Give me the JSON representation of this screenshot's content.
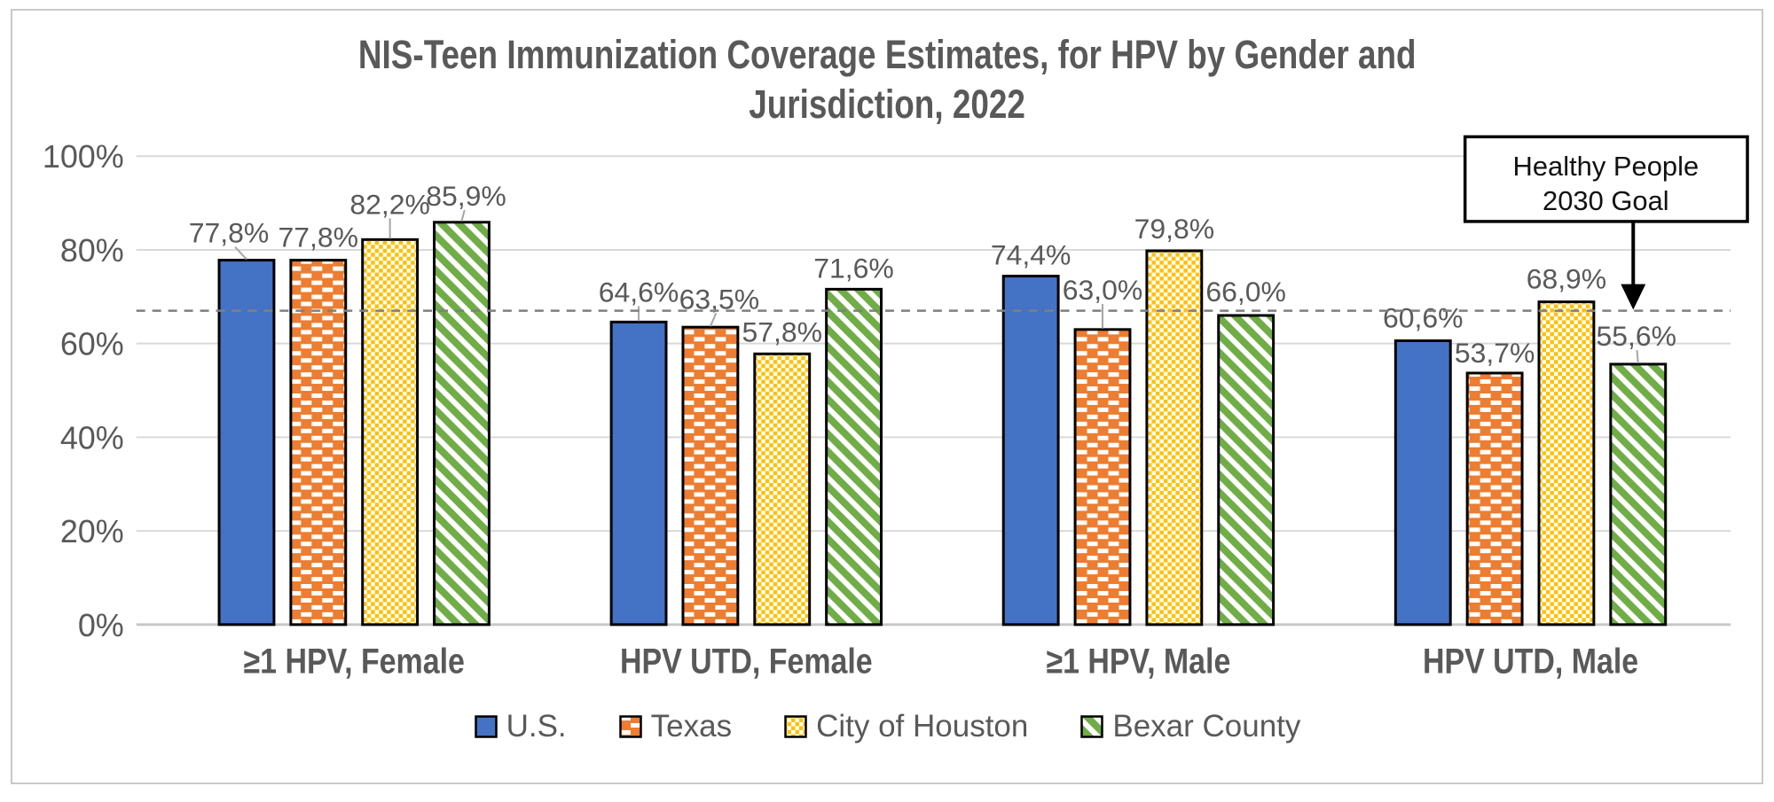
{
  "header": {
    "title_lines": [
      "NIS-Teen Immunization Coverage Estimates, for HPV by Gender and",
      "Jurisdiction, 2022"
    ]
  },
  "chart_data": {
    "type": "bar",
    "title": "NIS-Teen Immunization Coverage Estimates, for HPV by Gender and Jurisdiction, 2022",
    "categories": [
      "≥1 HPV, Female",
      "HPV UTD, Female",
      "≥1 HPV, Male",
      "HPV UTD, Male"
    ],
    "series": [
      {
        "name": "U.S.",
        "pattern": "solid",
        "color": "#4472C4",
        "values": [
          77.8,
          64.6,
          74.4,
          60.6
        ],
        "labels": [
          "77,8%",
          "64,6%",
          "74,4%",
          "60,6%"
        ]
      },
      {
        "name": "Texas",
        "pattern": "white-dashes",
        "color": "#ED7D31",
        "values": [
          77.8,
          63.5,
          63.0,
          53.7
        ],
        "labels": [
          "77,8%",
          "63,5%",
          "63,0%",
          "53,7%"
        ]
      },
      {
        "name": "City of Houston",
        "pattern": "white-checker",
        "color": "#FFC000",
        "values": [
          82.2,
          57.8,
          79.8,
          68.9
        ],
        "labels": [
          "82,2%",
          "57,8%",
          "79,8%",
          "68,9%"
        ]
      },
      {
        "name": "Bexar County",
        "pattern": "diagonal-stripes",
        "color": "#70AD47",
        "values": [
          85.9,
          71.6,
          66.0,
          55.6
        ],
        "labels": [
          "85,9%",
          "71,6%",
          "66,0%",
          "55,6%"
        ]
      }
    ],
    "y_axis": {
      "ticks": [
        "100%",
        "80%",
        "60%",
        "40%",
        "20%",
        "0%"
      ],
      "range": [
        0,
        100
      ],
      "grid": true
    },
    "goal_line": {
      "value": 67,
      "style": "dashed",
      "annotation_lines": [
        "Healthy People",
        "2030 Goal"
      ]
    },
    "legend": {
      "position": "bottom",
      "entries": [
        "U.S.",
        "Texas",
        "City of Houston",
        "Bexar County"
      ]
    }
  },
  "colors": {
    "text": "#595959",
    "gridline": "#D9D9D9",
    "axis_line": "#C6C6C6",
    "bar_outline": "#000000",
    "goal_line": "#7F7F7F",
    "leader_line": "#A6A6A6",
    "frame_border": "#C9C9C9",
    "annotation_text": "#111111"
  }
}
